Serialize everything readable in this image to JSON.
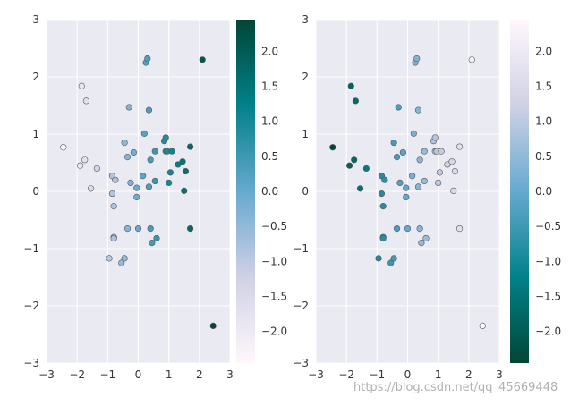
{
  "chart_data": [
    {
      "type": "scatter",
      "colormap": "PuBuGn",
      "colormap_reversed": false,
      "xlim": [
        -3,
        3
      ],
      "ylim": [
        -3,
        3
      ],
      "xticks": [
        "−3",
        "−2",
        "−1",
        "0",
        "1",
        "2",
        "3"
      ],
      "yticks": [
        "−3",
        "−2",
        "−1",
        "0",
        "1",
        "2",
        "3"
      ],
      "grid": true,
      "colorbar": {
        "range": [
          -2.45,
          2.45
        ],
        "ticks": [
          "2.0",
          "1.5",
          "1.0",
          "0.5",
          "0.0",
          "−0.5",
          "−1.0",
          "−1.5",
          "−2.0"
        ]
      },
      "x": [
        -2.45,
        -1.9,
        -1.85,
        -1.75,
        -1.7,
        -1.55,
        -1.35,
        -0.85,
        -0.85,
        -0.8,
        -0.8,
        -0.8,
        -0.75,
        -0.55,
        -0.45,
        -0.35,
        -0.35,
        -0.3,
        -0.25,
        -0.15,
        -0.05,
        -0.05,
        0.0,
        0.15,
        0.2,
        0.25,
        0.3,
        0.35,
        0.4,
        0.4,
        0.45,
        0.55,
        0.55,
        0.6,
        0.85,
        0.9,
        0.9,
        0.95,
        1.0,
        1.05,
        1.1,
        1.3,
        1.45,
        1.5,
        1.55,
        1.7,
        1.7,
        2.1,
        2.45,
        0.35,
        -0.45,
        -0.95
      ],
      "y": [
        0.77,
        0.45,
        1.84,
        0.55,
        1.58,
        0.05,
        0.4,
        0.27,
        -0.04,
        -0.26,
        -0.8,
        -0.82,
        0.2,
        -1.25,
        0.85,
        -0.65,
        0.6,
        1.47,
        0.15,
        0.68,
        0.06,
        -0.1,
        -0.65,
        0.27,
        1.01,
        2.25,
        2.32,
        1.42,
        0.55,
        -0.65,
        -0.9,
        0.18,
        0.7,
        -0.82,
        0.88,
        0.94,
        0.7,
        0.7,
        0.15,
        0.33,
        0.7,
        0.47,
        0.52,
        0.01,
        0.35,
        0.78,
        -0.65,
        2.3,
        -2.35,
        0.08,
        -1.17,
        -1.17
      ],
      "values": [
        -2.45,
        -1.9,
        -1.85,
        -1.75,
        -1.7,
        -1.55,
        -1.35,
        -0.85,
        -0.85,
        -0.8,
        -0.8,
        -0.8,
        -0.75,
        -0.55,
        -0.45,
        -0.35,
        -0.35,
        -0.3,
        -0.25,
        -0.15,
        -0.05,
        -0.05,
        0.0,
        0.15,
        0.2,
        0.25,
        0.3,
        0.35,
        0.4,
        0.4,
        0.45,
        0.55,
        0.55,
        0.6,
        0.85,
        0.9,
        0.9,
        0.95,
        1.0,
        1.05,
        1.1,
        1.3,
        1.45,
        1.5,
        1.55,
        1.7,
        1.7,
        2.1,
        2.45,
        0.35,
        -0.45,
        -0.95
      ]
    },
    {
      "type": "scatter",
      "colormap": "PuBuGn",
      "colormap_reversed": true,
      "xlim": [
        -3,
        3
      ],
      "ylim": [
        -3,
        3
      ],
      "xticks": [
        "−3",
        "−2",
        "−1",
        "0",
        "1",
        "2",
        "3"
      ],
      "yticks": [
        "−3",
        "−2",
        "−1",
        "0",
        "1",
        "2",
        "3"
      ],
      "grid": true,
      "colorbar": {
        "range": [
          -2.45,
          2.45
        ],
        "ticks": [
          "2.0",
          "1.5",
          "1.0",
          "0.5",
          "0.0",
          "−0.5",
          "−1.0",
          "−1.5",
          "−2.0"
        ]
      },
      "x": [
        -2.45,
        -1.9,
        -1.85,
        -1.75,
        -1.7,
        -1.55,
        -1.35,
        -0.85,
        -0.85,
        -0.8,
        -0.8,
        -0.8,
        -0.75,
        -0.55,
        -0.45,
        -0.35,
        -0.35,
        -0.3,
        -0.25,
        -0.15,
        -0.05,
        -0.05,
        0.0,
        0.15,
        0.2,
        0.25,
        0.3,
        0.35,
        0.4,
        0.4,
        0.45,
        0.55,
        0.55,
        0.6,
        0.85,
        0.9,
        0.9,
        0.95,
        1.0,
        1.05,
        1.1,
        1.3,
        1.45,
        1.5,
        1.55,
        1.7,
        1.7,
        2.1,
        2.45,
        0.35,
        -0.45,
        -0.95
      ],
      "y": [
        0.77,
        0.45,
        1.84,
        0.55,
        1.58,
        0.05,
        0.4,
        0.27,
        -0.04,
        -0.26,
        -0.8,
        -0.82,
        0.2,
        -1.25,
        0.85,
        -0.65,
        0.6,
        1.47,
        0.15,
        0.68,
        0.06,
        -0.1,
        -0.65,
        0.27,
        1.01,
        2.25,
        2.32,
        1.42,
        0.55,
        -0.65,
        -0.9,
        0.18,
        0.7,
        -0.82,
        0.88,
        0.94,
        0.7,
        0.7,
        0.15,
        0.33,
        0.7,
        0.47,
        0.52,
        0.01,
        0.35,
        0.78,
        -0.65,
        2.3,
        -2.35,
        0.08,
        -1.17,
        -1.17
      ],
      "values": [
        -2.45,
        -1.9,
        -1.85,
        -1.75,
        -1.7,
        -1.55,
        -1.35,
        -0.85,
        -0.85,
        -0.8,
        -0.8,
        -0.8,
        -0.75,
        -0.55,
        -0.45,
        -0.35,
        -0.35,
        -0.3,
        -0.25,
        -0.15,
        -0.05,
        -0.05,
        0.0,
        0.15,
        0.2,
        0.25,
        0.3,
        0.35,
        0.4,
        0.4,
        0.45,
        0.55,
        0.55,
        0.6,
        0.85,
        0.9,
        0.9,
        0.95,
        1.0,
        1.05,
        1.1,
        1.3,
        1.45,
        1.5,
        1.55,
        1.7,
        1.7,
        2.1,
        2.45,
        0.35,
        -0.45,
        -0.95
      ]
    }
  ],
  "watermark": "https://blog.csdn.net/qq_45669448"
}
